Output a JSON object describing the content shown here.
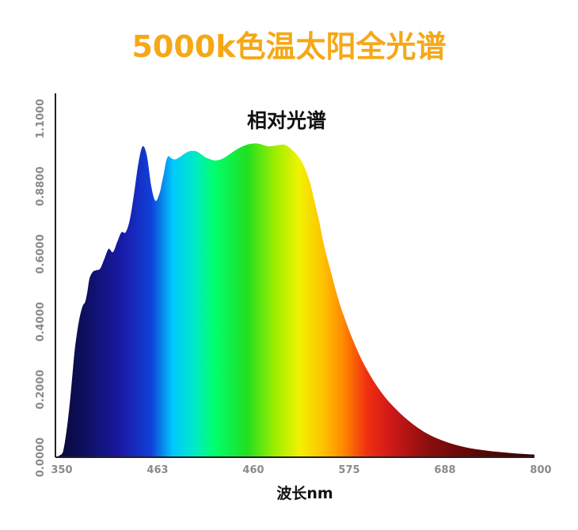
{
  "header": {
    "title": "5000k色温太阳全光谱"
  },
  "colors": {
    "title": "#f5a816",
    "axis": "#222222",
    "tick_text": "#8a8a8a"
  },
  "chart_data": {
    "type": "area",
    "title": "相对光谱",
    "xlabel": "波长nm",
    "ylabel": "",
    "x_ticks": [
      "350",
      "463",
      "460",
      "575",
      "688",
      "800"
    ],
    "y_ticks": [
      "0.0000",
      "0.2000",
      "0.4000",
      "0.6000",
      "0.8800",
      "1.1000"
    ],
    "xlim": [
      350,
      800
    ],
    "ylim": [
      0,
      1.1
    ],
    "grid": false,
    "series": [
      {
        "x": [
          350,
          356,
          358,
          360,
          362,
          364,
          366,
          368,
          370,
          372,
          374,
          376,
          378,
          380,
          382,
          385,
          388,
          392,
          396,
          400,
          404,
          408,
          412,
          416,
          420,
          424,
          428,
          432,
          436,
          440,
          444,
          448,
          450,
          452,
          454,
          456,
          458,
          460,
          462,
          464,
          466,
          468,
          470,
          473,
          476,
          479,
          482,
          485,
          488,
          492,
          496,
          500,
          505,
          510,
          520,
          530,
          540,
          550,
          560,
          566,
          572,
          578,
          582,
          586,
          590,
          594,
          598,
          602,
          608,
          616,
          624,
          632,
          640,
          650,
          660,
          670,
          680,
          690,
          700,
          710,
          720,
          730,
          740,
          750,
          760,
          770,
          780,
          790,
          800
        ],
        "y": [
          0.0,
          0.01,
          0.03,
          0.07,
          0.12,
          0.18,
          0.25,
          0.32,
          0.37,
          0.41,
          0.44,
          0.46,
          0.47,
          0.5,
          0.54,
          0.56,
          0.565,
          0.57,
          0.6,
          0.63,
          0.62,
          0.65,
          0.68,
          0.68,
          0.72,
          0.8,
          0.89,
          0.94,
          0.91,
          0.82,
          0.775,
          0.8,
          0.83,
          0.86,
          0.895,
          0.91,
          0.906,
          0.902,
          0.9,
          0.902,
          0.906,
          0.91,
          0.915,
          0.921,
          0.925,
          0.926,
          0.925,
          0.92,
          0.913,
          0.905,
          0.9,
          0.897,
          0.9,
          0.908,
          0.93,
          0.945,
          0.948,
          0.94,
          0.944,
          0.944,
          0.93,
          0.91,
          0.89,
          0.86,
          0.82,
          0.765,
          0.71,
          0.645,
          0.57,
          0.475,
          0.4,
          0.335,
          0.28,
          0.225,
          0.18,
          0.145,
          0.115,
          0.09,
          0.07,
          0.055,
          0.043,
          0.034,
          0.027,
          0.022,
          0.018,
          0.015,
          0.012,
          0.01,
          0.008
        ]
      }
    ]
  }
}
